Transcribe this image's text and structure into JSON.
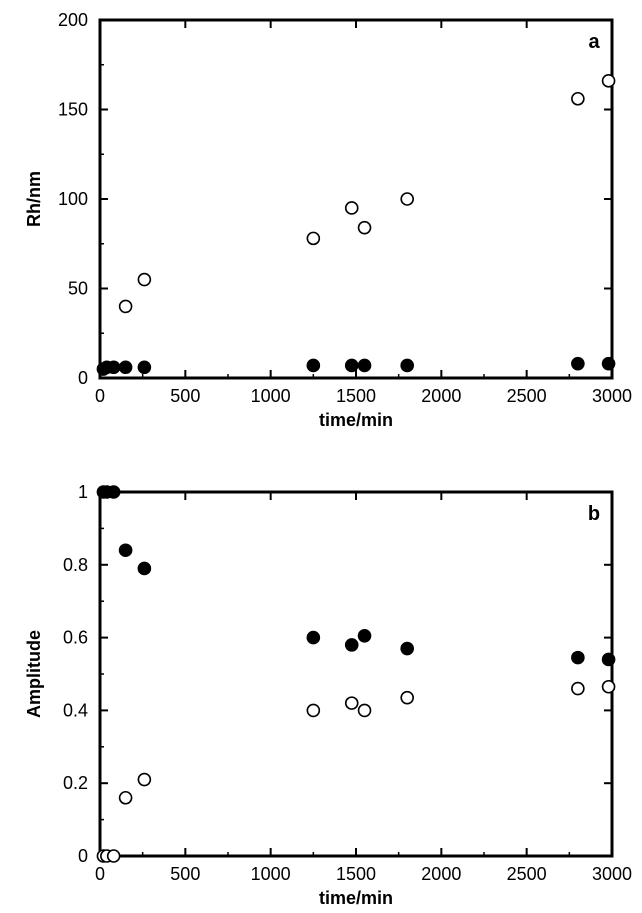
{
  "chart_data": [
    {
      "type": "scatter",
      "panel_label": "a",
      "xlabel": "time/min",
      "ylabel": "Rh/nm",
      "xlim": [
        0,
        3000
      ],
      "ylim": [
        0,
        200
      ],
      "xticks": [
        0,
        500,
        1000,
        1500,
        2000,
        2500,
        3000
      ],
      "yticks": [
        0,
        50,
        100,
        150,
        200
      ],
      "grid": false,
      "series": [
        {
          "marker": "filled-circle",
          "x": [
            20,
            40,
            80,
            150,
            260,
            1250,
            1475,
            1550,
            1800,
            2800,
            2980
          ],
          "y": [
            5,
            6,
            6,
            6,
            6,
            7,
            7,
            7,
            7,
            8,
            8
          ]
        },
        {
          "marker": "open-circle",
          "x": [
            150,
            260,
            1250,
            1475,
            1550,
            1800,
            2800,
            2980
          ],
          "y": [
            40,
            55,
            78,
            95,
            84,
            100,
            156,
            166
          ]
        }
      ]
    },
    {
      "type": "scatter",
      "panel_label": "b",
      "xlabel": "time/min",
      "ylabel": "Amplitude",
      "xlim": [
        0,
        3000
      ],
      "ylim": [
        0,
        1
      ],
      "xticks": [
        0,
        500,
        1000,
        1500,
        2000,
        2500,
        3000
      ],
      "yticks": [
        0,
        0.2,
        0.4,
        0.6,
        0.8,
        1
      ],
      "grid": false,
      "series": [
        {
          "marker": "filled-circle",
          "x": [
            20,
            40,
            80,
            150,
            260,
            1250,
            1475,
            1550,
            1800,
            2800,
            2980
          ],
          "y": [
            1.0,
            1.0,
            1.0,
            0.84,
            0.79,
            0.6,
            0.58,
            0.605,
            0.57,
            0.545,
            0.54
          ]
        },
        {
          "marker": "open-circle",
          "x": [
            20,
            40,
            80,
            150,
            260,
            1250,
            1475,
            1550,
            1800,
            2800,
            2980
          ],
          "y": [
            0.0,
            0.0,
            0.0,
            0.16,
            0.21,
            0.4,
            0.42,
            0.4,
            0.435,
            0.46,
            0.465
          ]
        }
      ]
    }
  ]
}
